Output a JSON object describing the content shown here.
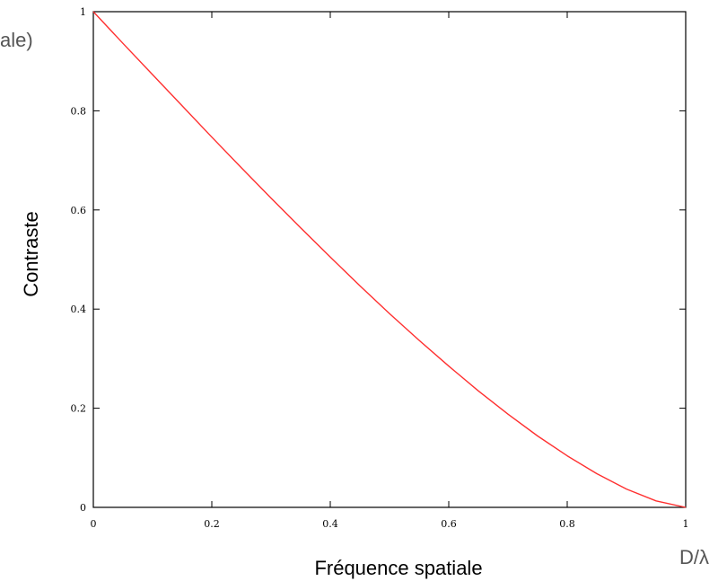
{
  "fragment_text": "ale)",
  "chart_data": {
    "type": "line",
    "title": "",
    "xlabel": "Fréquence spatiale",
    "ylabel": "Contraste",
    "x_unit": "D/λ",
    "xlim": [
      0,
      1
    ],
    "ylim": [
      0,
      1
    ],
    "x_ticks": [
      0,
      0.2,
      0.4,
      0.6,
      0.8,
      1
    ],
    "y_ticks": [
      0,
      0.2,
      0.4,
      0.6,
      0.8,
      1
    ],
    "x_tick_labels": [
      "0",
      "0.2",
      "0.4",
      "0.6",
      "0.8",
      "1"
    ],
    "y_tick_labels": [
      "0",
      "0.2",
      "0.4",
      "0.6",
      "0.8",
      "1"
    ],
    "grid": false,
    "series": [
      {
        "color": "#ff3030",
        "x": [
          0,
          0.05,
          0.1,
          0.15,
          0.2,
          0.25,
          0.3,
          0.35,
          0.4,
          0.45,
          0.5,
          0.55,
          0.6,
          0.65,
          0.7,
          0.75,
          0.8,
          0.85,
          0.9,
          0.95,
          1.0
        ],
        "y": [
          1.0,
          0.936,
          0.873,
          0.81,
          0.747,
          0.685,
          0.624,
          0.564,
          0.505,
          0.447,
          0.391,
          0.337,
          0.285,
          0.235,
          0.188,
          0.144,
          0.104,
          0.068,
          0.037,
          0.013,
          0.0
        ]
      }
    ]
  }
}
